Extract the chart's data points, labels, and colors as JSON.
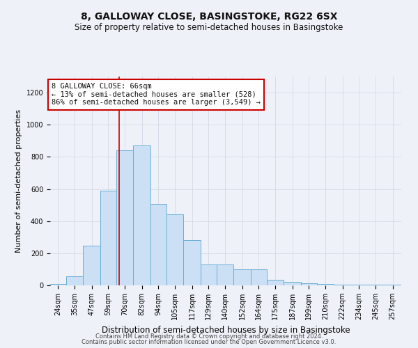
{
  "title": "8, GALLOWAY CLOSE, BASINGSTOKE, RG22 6SX",
  "subtitle": "Size of property relative to semi-detached houses in Basingstoke",
  "xlabel": "Distribution of semi-detached houses by size in Basingstoke",
  "ylabel": "Number of semi-detached properties",
  "footer1": "Contains HM Land Registry data © Crown copyright and database right 2024.",
  "footer2": "Contains public sector information licensed under the Open Government Licence v3.0.",
  "bar_color": "#cce0f5",
  "bar_edge_color": "#6aaed6",
  "annotation_box_color": "#ffffff",
  "annotation_border_color": "#cc0000",
  "vline_color": "#cc0000",
  "property_size": 66,
  "property_label": "8 GALLOWAY CLOSE: 66sqm",
  "pct_smaller": 13,
  "n_smaller": 528,
  "pct_larger": 86,
  "n_larger": 3549,
  "categories": [
    "24sqm",
    "35sqm",
    "47sqm",
    "59sqm",
    "70sqm",
    "82sqm",
    "94sqm",
    "105sqm",
    "117sqm",
    "129sqm",
    "140sqm",
    "152sqm",
    "164sqm",
    "175sqm",
    "187sqm",
    "199sqm",
    "210sqm",
    "222sqm",
    "234sqm",
    "245sqm",
    "257sqm"
  ],
  "bin_edges": [
    18,
    29,
    41,
    53,
    64,
    76,
    88,
    99,
    111,
    123,
    134,
    146,
    158,
    169,
    181,
    193,
    204,
    216,
    228,
    239,
    251,
    263
  ],
  "values": [
    10,
    55,
    245,
    590,
    840,
    870,
    505,
    440,
    280,
    130,
    130,
    100,
    100,
    35,
    20,
    15,
    10,
    5,
    5,
    5,
    5
  ],
  "ylim": [
    0,
    1300
  ],
  "yticks": [
    0,
    200,
    400,
    600,
    800,
    1000,
    1200
  ],
  "grid_color": "#d8dce8",
  "bg_color": "#eef2f8",
  "title_fontsize": 10,
  "subtitle_fontsize": 8.5,
  "ylabel_fontsize": 8,
  "xlabel_fontsize": 8.5,
  "tick_fontsize": 7,
  "footer_fontsize": 6,
  "annot_fontsize": 7.5
}
